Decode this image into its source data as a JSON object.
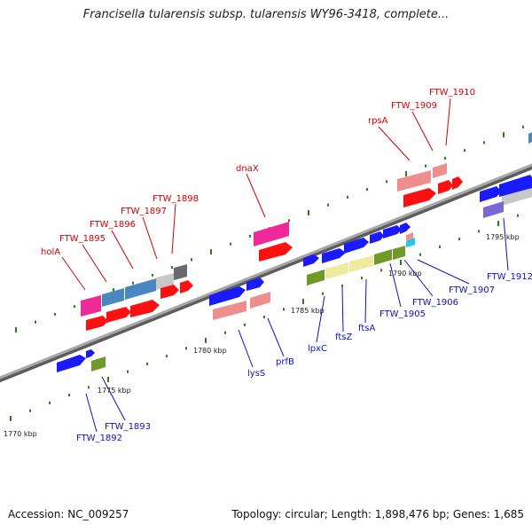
{
  "title": "Francisella tularensis subsp. tularensis WY96-3418, complete...",
  "accession": "Accession: NC_009257",
  "stats": "Topology: circular; Length: 1,898,476 bp; Genes: 1,685",
  "colors": {
    "backbone": "#8f8f8f",
    "tick": "#2f7d1e",
    "top_label": "#d40000",
    "bottom_label": "#1010c0",
    "gene_red": "#ff1010",
    "gene_blue": "#1a1aff",
    "gene_pink": "#ee2a9a",
    "gene_salmon": "#ef8e8e",
    "gene_steel": "#4a86c0",
    "gene_grey": "#c8c8c8",
    "gene_darkgrey": "#6a6a6a",
    "gene_olive": "#6f9a2a",
    "gene_khaki": "#eeea9e",
    "gene_purple": "#7a68d6",
    "gene_cyan": "#22c8e8"
  },
  "scale_labels": [
    {
      "text": "1770 kbp"
    },
    {
      "text": "1775 kbp"
    },
    {
      "text": "1780 kbp"
    },
    {
      "text": "1785 kbp"
    },
    {
      "text": "1790 kbp"
    },
    {
      "text": "1795 kbp"
    }
  ],
  "top_labels": [
    {
      "text": "holA"
    },
    {
      "text": "FTW_1895"
    },
    {
      "text": "FTW_1896"
    },
    {
      "text": "FTW_1897"
    },
    {
      "text": "FTW_1898"
    },
    {
      "text": "dnaX"
    },
    {
      "text": "rpsA"
    },
    {
      "text": "FTW_1909"
    },
    {
      "text": "FTW_1910"
    }
  ],
  "bottom_labels": [
    {
      "text": "FTW_1892"
    },
    {
      "text": "FTW_1893"
    },
    {
      "text": "lysS"
    },
    {
      "text": "prfB"
    },
    {
      "text": "lpxC"
    },
    {
      "text": "ftsZ"
    },
    {
      "text": "ftsA"
    },
    {
      "text": "FTW_1905"
    },
    {
      "text": "FTW_1906"
    },
    {
      "text": "FTW_1907"
    },
    {
      "text": "FTW_1912"
    }
  ]
}
